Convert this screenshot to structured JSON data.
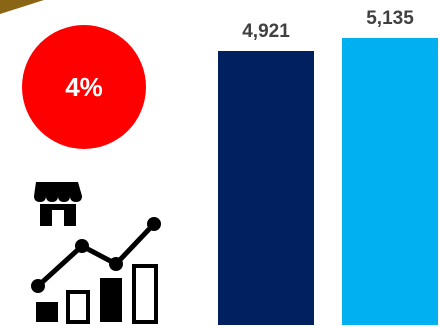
{
  "badge": {
    "text": "4%",
    "color": "#ff0000"
  },
  "icon": {
    "name": "store-growth-analytics-icon"
  },
  "colors": {
    "accent": "#8b6516",
    "bar1": "#002060",
    "bar2": "#00b0f0"
  },
  "chart_data": {
    "type": "bar",
    "categories": [
      "",
      ""
    ],
    "values": [
      4921,
      5135
    ],
    "labels": [
      "4,921",
      "5,135"
    ],
    "title": "",
    "xlabel": "",
    "ylabel": "",
    "grid": false
  }
}
